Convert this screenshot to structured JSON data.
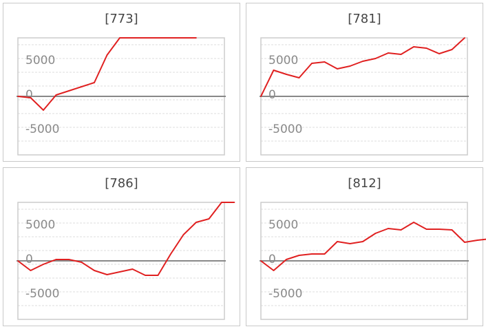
{
  "colors": {
    "line": "#e02020",
    "grid": "#dcdcdc",
    "zero_line": "#888888",
    "frame": "#cccccc",
    "tick": "#8a8a8a"
  },
  "chart_data": [
    {
      "type": "line",
      "title": "[773]",
      "ylim": [
        -8500,
        8500
      ],
      "yticks": [
        5000,
        0,
        -5000
      ],
      "grid": true,
      "series": [
        {
          "values": [
            0,
            -200,
            -2000,
            200,
            800,
            1400,
            2000,
            6000,
            8500,
            8500,
            8500,
            8500,
            8500,
            8500,
            8500
          ]
        }
      ]
    },
    {
      "type": "line",
      "title": "[781]",
      "ylim": [
        -8500,
        8500
      ],
      "yticks": [
        5000,
        0,
        -5000
      ],
      "grid": true,
      "series": [
        {
          "values": [
            0,
            3800,
            3200,
            2700,
            4800,
            5000,
            4000,
            4400,
            5100,
            5500,
            6300,
            6100,
            7200,
            7000,
            6200,
            6800,
            8500
          ]
        }
      ]
    },
    {
      "type": "line",
      "title": "[786]",
      "ylim": [
        -8500,
        8500
      ],
      "yticks": [
        5000,
        0,
        -5000
      ],
      "grid": true,
      "series": [
        {
          "values": [
            0,
            -1400,
            -500,
            200,
            200,
            -200,
            -1400,
            -2000,
            -1600,
            -1200,
            -2100,
            -2100,
            1000,
            3800,
            5600,
            6100,
            8500,
            8500
          ]
        }
      ]
    },
    {
      "type": "line",
      "title": "[812]",
      "ylim": [
        -8500,
        8500
      ],
      "yticks": [
        5000,
        0,
        -5000
      ],
      "grid": true,
      "series": [
        {
          "values": [
            0,
            -1400,
            200,
            800,
            1000,
            1000,
            2800,
            2500,
            2800,
            4000,
            4700,
            4500,
            5600,
            4600,
            4600,
            4500,
            2700,
            3000,
            3200
          ]
        }
      ]
    }
  ]
}
